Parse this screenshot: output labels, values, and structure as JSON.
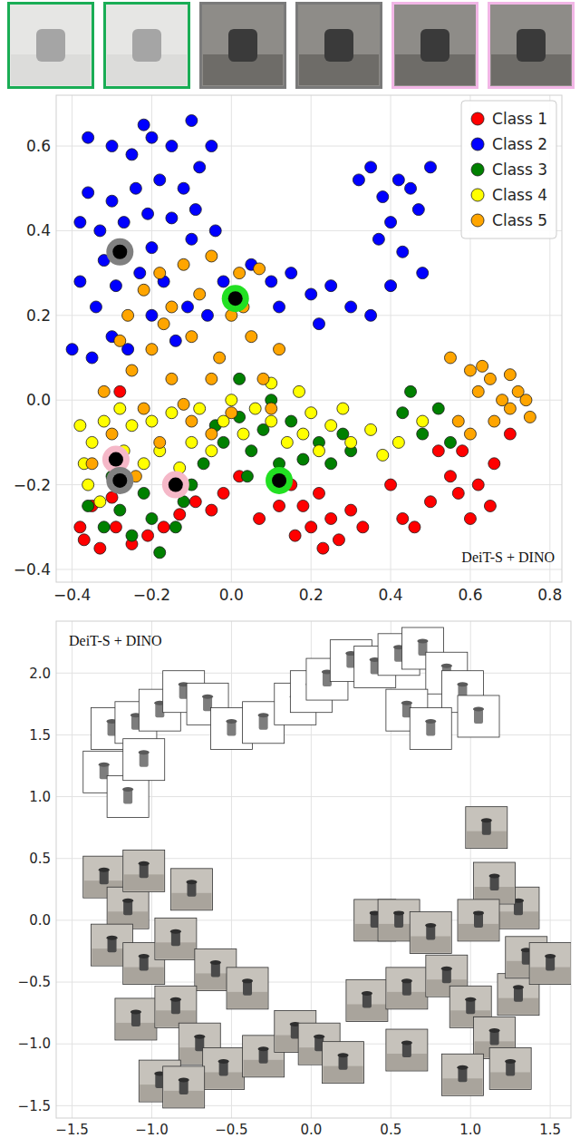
{
  "thumbnails": {
    "colors": [
      "#1aad55",
      "#1aad55",
      "#7a7a7a",
      "#7a7a7a",
      "#f2b6e6",
      "#f2b6e6"
    ]
  },
  "chart_data": [
    {
      "type": "scatter",
      "annotation": "DeiT-S + DINO",
      "xlim": [
        -0.44,
        0.83
      ],
      "ylim": [
        -0.43,
        0.72
      ],
      "xticks": [
        {
          "value": -0.4,
          "label": "−0.4"
        },
        {
          "value": -0.2,
          "label": "−0.2"
        },
        {
          "value": 0,
          "label": "0.0"
        },
        {
          "value": 0.2,
          "label": "0.2"
        },
        {
          "value": 0.4,
          "label": "0.4"
        },
        {
          "value": 0.6,
          "label": "0.6"
        },
        {
          "value": 0.8,
          "label": "0.8"
        }
      ],
      "yticks": [
        {
          "value": -0.4,
          "label": "−0.4"
        },
        {
          "value": -0.2,
          "label": "−0.2"
        },
        {
          "value": 0,
          "label": "0.0"
        },
        {
          "value": 0.2,
          "label": "0.2"
        },
        {
          "value": 0.4,
          "label": "0.4"
        },
        {
          "value": 0.6,
          "label": "0.6"
        }
      ],
      "grid": true,
      "legend": "upper right",
      "marker": "circle",
      "series": [
        {
          "name": "Class 1",
          "color": "#ff0000",
          "x": [
            -0.37,
            -0.33,
            -0.29,
            -0.25,
            -0.21,
            -0.17,
            -0.13,
            -0.09,
            -0.05,
            -0.02,
            -0.35,
            -0.3,
            -0.38,
            0.15,
            0.18,
            0.2,
            0.22,
            0.25,
            0.27,
            0.3,
            0.16,
            0.23,
            0.33,
            0.02,
            0.07,
            0.12,
            0.4,
            0.43,
            0.46,
            0.5,
            0.55,
            0.58,
            0.62,
            0.66,
            0.7,
            0.65,
            0.52,
            0.6,
            -0.28,
            0.57
          ],
          "values": [
            -0.33,
            -0.35,
            -0.3,
            -0.34,
            -0.32,
            -0.3,
            -0.27,
            -0.24,
            -0.26,
            -0.22,
            -0.25,
            -0.23,
            -0.3,
            -0.2,
            -0.25,
            -0.3,
            -0.22,
            -0.28,
            -0.33,
            -0.26,
            -0.32,
            -0.35,
            -0.3,
            -0.18,
            -0.28,
            -0.25,
            -0.2,
            -0.28,
            -0.3,
            -0.24,
            -0.18,
            -0.12,
            -0.2,
            -0.15,
            -0.08,
            -0.25,
            -0.12,
            -0.28,
            0.02,
            -0.22
          ]
        },
        {
          "name": "Class 2",
          "color": "#0000ff",
          "x": [
            -0.36,
            -0.3,
            -0.25,
            -0.2,
            -0.15,
            -0.1,
            -0.08,
            -0.12,
            -0.18,
            -0.24,
            -0.3,
            -0.36,
            -0.38,
            -0.33,
            -0.27,
            -0.21,
            -0.15,
            -0.09,
            -0.04,
            -0.1,
            -0.2,
            -0.32,
            -0.38,
            -0.34,
            -0.29,
            -0.23,
            -0.17,
            -0.11,
            -0.2,
            -0.3,
            -0.4,
            -0.35,
            -0.26,
            -0.14,
            -0.06,
            0.05,
            0.1,
            0.15,
            0.2,
            0.25,
            0.3,
            0.35,
            0.12,
            0.22,
            -0.02,
            0.32,
            0.35,
            0.38,
            0.4,
            0.42,
            0.45,
            0.5,
            0.47,
            0.37,
            0.43,
            0.48,
            0.4,
            -0.05,
            -0.22
          ],
          "values": [
            0.62,
            0.6,
            0.58,
            0.62,
            0.6,
            0.66,
            0.55,
            0.5,
            0.52,
            0.5,
            0.47,
            0.49,
            0.42,
            0.4,
            0.42,
            0.44,
            0.43,
            0.45,
            0.4,
            0.38,
            0.36,
            0.33,
            0.28,
            0.22,
            0.27,
            0.3,
            0.28,
            0.22,
            0.2,
            0.15,
            0.12,
            0.1,
            0.12,
            0.14,
            0.2,
            0.32,
            0.28,
            0.3,
            0.25,
            0.27,
            0.22,
            0.2,
            0.22,
            0.18,
            0.28,
            0.52,
            0.55,
            0.48,
            0.42,
            0.52,
            0.5,
            0.55,
            0.45,
            0.38,
            0.35,
            0.3,
            0.27,
            0.6,
            0.65
          ]
        },
        {
          "name": "Class 3",
          "color": "#008000",
          "x": [
            -0.36,
            -0.32,
            -0.28,
            -0.25,
            -0.2,
            -0.18,
            -0.14,
            -0.22,
            -0.12,
            -0.07,
            -0.04,
            -0.02,
            0.02,
            0.05,
            0.08,
            0.12,
            0.15,
            0.18,
            0.22,
            0.25,
            0.28,
            0.1,
            0.02,
            0.43,
            0.45,
            0.48,
            0.52,
            0.55,
            -0.3,
            -0.1,
            0.3,
            0.04
          ],
          "values": [
            -0.25,
            -0.3,
            -0.26,
            -0.32,
            -0.28,
            -0.36,
            -0.3,
            -0.22,
            -0.24,
            -0.15,
            -0.06,
            -0.1,
            -0.04,
            -0.12,
            -0.07,
            -0.15,
            -0.05,
            -0.14,
            -0.1,
            -0.15,
            -0.08,
            0,
            0.05,
            -0.03,
            0.02,
            -0.08,
            -0.02,
            -0.1,
            -0.18,
            -0.2,
            -0.12,
            -0.18
          ]
        },
        {
          "name": "Class 4",
          "color": "#ffff00",
          "x": [
            -0.38,
            -0.35,
            -0.32,
            -0.3,
            -0.36,
            -0.33,
            -0.27,
            -0.25,
            -0.22,
            -0.2,
            -0.18,
            -0.15,
            -0.13,
            -0.1,
            -0.08,
            -0.05,
            -0.02,
            0,
            0.03,
            0.06,
            0.1,
            0.14,
            0.18,
            0.2,
            0.22,
            0.25,
            0.28,
            0.3,
            0.35,
            0.38,
            0.42,
            0.48,
            0.17,
            0.1,
            -0.28,
            -0.37
          ],
          "values": [
            -0.06,
            -0.1,
            -0.05,
            -0.14,
            -0.2,
            -0.24,
            -0.12,
            -0.06,
            -0.15,
            -0.05,
            -0.12,
            -0.03,
            -0.16,
            -0.1,
            -0.02,
            -0.12,
            -0.05,
            0,
            -0.08,
            -0.02,
            -0.05,
            -0.1,
            -0.08,
            -0.03,
            -0.12,
            -0.06,
            -0.02,
            -0.1,
            -0.07,
            -0.13,
            -0.1,
            -0.05,
            0.02,
            0.04,
            -0.02,
            -0.15
          ]
        },
        {
          "name": "Class 5",
          "color": "#ffa500",
          "x": [
            -0.18,
            -0.12,
            -0.05,
            0.02,
            0.07,
            0,
            -0.08,
            -0.15,
            -0.22,
            -0.26,
            -0.2,
            -0.1,
            -0.03,
            0.05,
            0.12,
            0.08,
            -0.05,
            -0.15,
            -0.25,
            -0.32,
            -0.22,
            -0.12,
            0,
            0.1,
            -0.3,
            -0.18,
            -0.05,
            -0.35,
            -0.24,
            -0.1,
            0.55,
            0.6,
            0.62,
            0.65,
            0.68,
            0.7,
            0.72,
            0.74,
            0.66,
            0.6,
            0.63,
            0.7,
            0.75,
            0.57,
            -0.17,
            0.03,
            -0.28
          ],
          "values": [
            0.3,
            0.32,
            0.34,
            0.3,
            0.31,
            0.2,
            0.25,
            0.22,
            0.26,
            0.2,
            0.12,
            0.15,
            0.1,
            0.15,
            0.12,
            0.05,
            0.05,
            0.05,
            0.07,
            0.02,
            -0.02,
            -0.01,
            -0.03,
            -0.02,
            -0.08,
            -0.1,
            -0.08,
            -0.15,
            -0.18,
            -0.05,
            0.1,
            0.07,
            0.02,
            0.05,
            0,
            -0.02,
            0.02,
            0,
            -0.05,
            -0.08,
            0.08,
            0.06,
            -0.04,
            -0.05,
            0.18,
            0.22,
            0.14
          ]
        }
      ],
      "highlights": {
        "x": [
          -0.28,
          0.01,
          0.12,
          -0.29,
          -0.28,
          -0.14
        ],
        "values": [
          0.35,
          0.24,
          -0.19,
          -0.14,
          -0.19,
          -0.2
        ],
        "colors": [
          "#808080",
          "#22e022",
          "#22e022",
          "#f5b8c8",
          "#808080",
          "#f5b8c8"
        ]
      }
    },
    {
      "type": "scatter",
      "annotation": "DeiT-S + DINO",
      "marker": "image",
      "xlim": [
        -1.6,
        1.63
      ],
      "ylim": [
        -1.6,
        2.42
      ],
      "xticks": [
        {
          "value": -1.5,
          "label": "−1.5"
        },
        {
          "value": -1,
          "label": "−1.0"
        },
        {
          "value": -0.5,
          "label": "−0.5"
        },
        {
          "value": 0,
          "label": "0.0"
        },
        {
          "value": 0.5,
          "label": "0.5"
        },
        {
          "value": 1,
          "label": "1.0"
        },
        {
          "value": 1.5,
          "label": "1.5"
        }
      ],
      "yticks": [
        {
          "value": -1.5,
          "label": "−1.5"
        },
        {
          "value": -1,
          "label": "−1.0"
        },
        {
          "value": -0.5,
          "label": "−0.5"
        },
        {
          "value": 0,
          "label": "0.0"
        },
        {
          "value": 0.5,
          "label": "0.5"
        },
        {
          "value": 1,
          "label": "1.0"
        },
        {
          "value": 1.5,
          "label": "1.5"
        },
        {
          "value": 2,
          "label": "2.0"
        }
      ],
      "grid": true,
      "series": [
        {
          "x": [
            -1.25,
            -1.1,
            -0.95,
            -0.8,
            -0.65,
            -0.5,
            -0.3,
            -0.1,
            0,
            0.1,
            0.25,
            0.4,
            0.55,
            0.7,
            0.85,
            0.95,
            1.05,
            0.6,
            0.75,
            -1.3,
            -1.15,
            -1.05,
            -1.3,
            -1.15,
            -1.05,
            -0.75,
            -1.25,
            -1.05,
            -0.85,
            -0.6,
            -0.4,
            -1.1,
            -0.85,
            -0.7,
            -0.55,
            -0.3,
            -0.1,
            0.05,
            0.2,
            0.35,
            0.6,
            0.4,
            0.55,
            0.75,
            0.85,
            1,
            1.15,
            1.3,
            1.35,
            1.5,
            1.3,
            1.15,
            1.05,
            1.1,
            -0.95,
            -0.8,
            0.95,
            1.25,
            0.6
          ],
          "values": [
            1.55,
            1.6,
            1.7,
            1.85,
            1.75,
            1.55,
            1.6,
            1.75,
            1.85,
            1.95,
            2.1,
            2.05,
            2.15,
            2.2,
            2,
            1.85,
            1.65,
            1.7,
            1.55,
            1.2,
            1,
            1.3,
            0.35,
            0.1,
            0.4,
            0.25,
            -0.2,
            -0.35,
            -0.15,
            -0.4,
            -0.55,
            -0.8,
            -0.7,
            -1,
            -1.2,
            -1.1,
            -0.9,
            -1,
            -1.15,
            -0.65,
            -0.55,
            0,
            0,
            -0.1,
            -0.45,
            -0.7,
            -0.95,
            -0.6,
            -0.3,
            -0.35,
            0.1,
            0.3,
            0,
            0.75,
            -1.3,
            -1.35,
            -1.25,
            -1.2,
            -1.05
          ]
        }
      ]
    }
  ]
}
